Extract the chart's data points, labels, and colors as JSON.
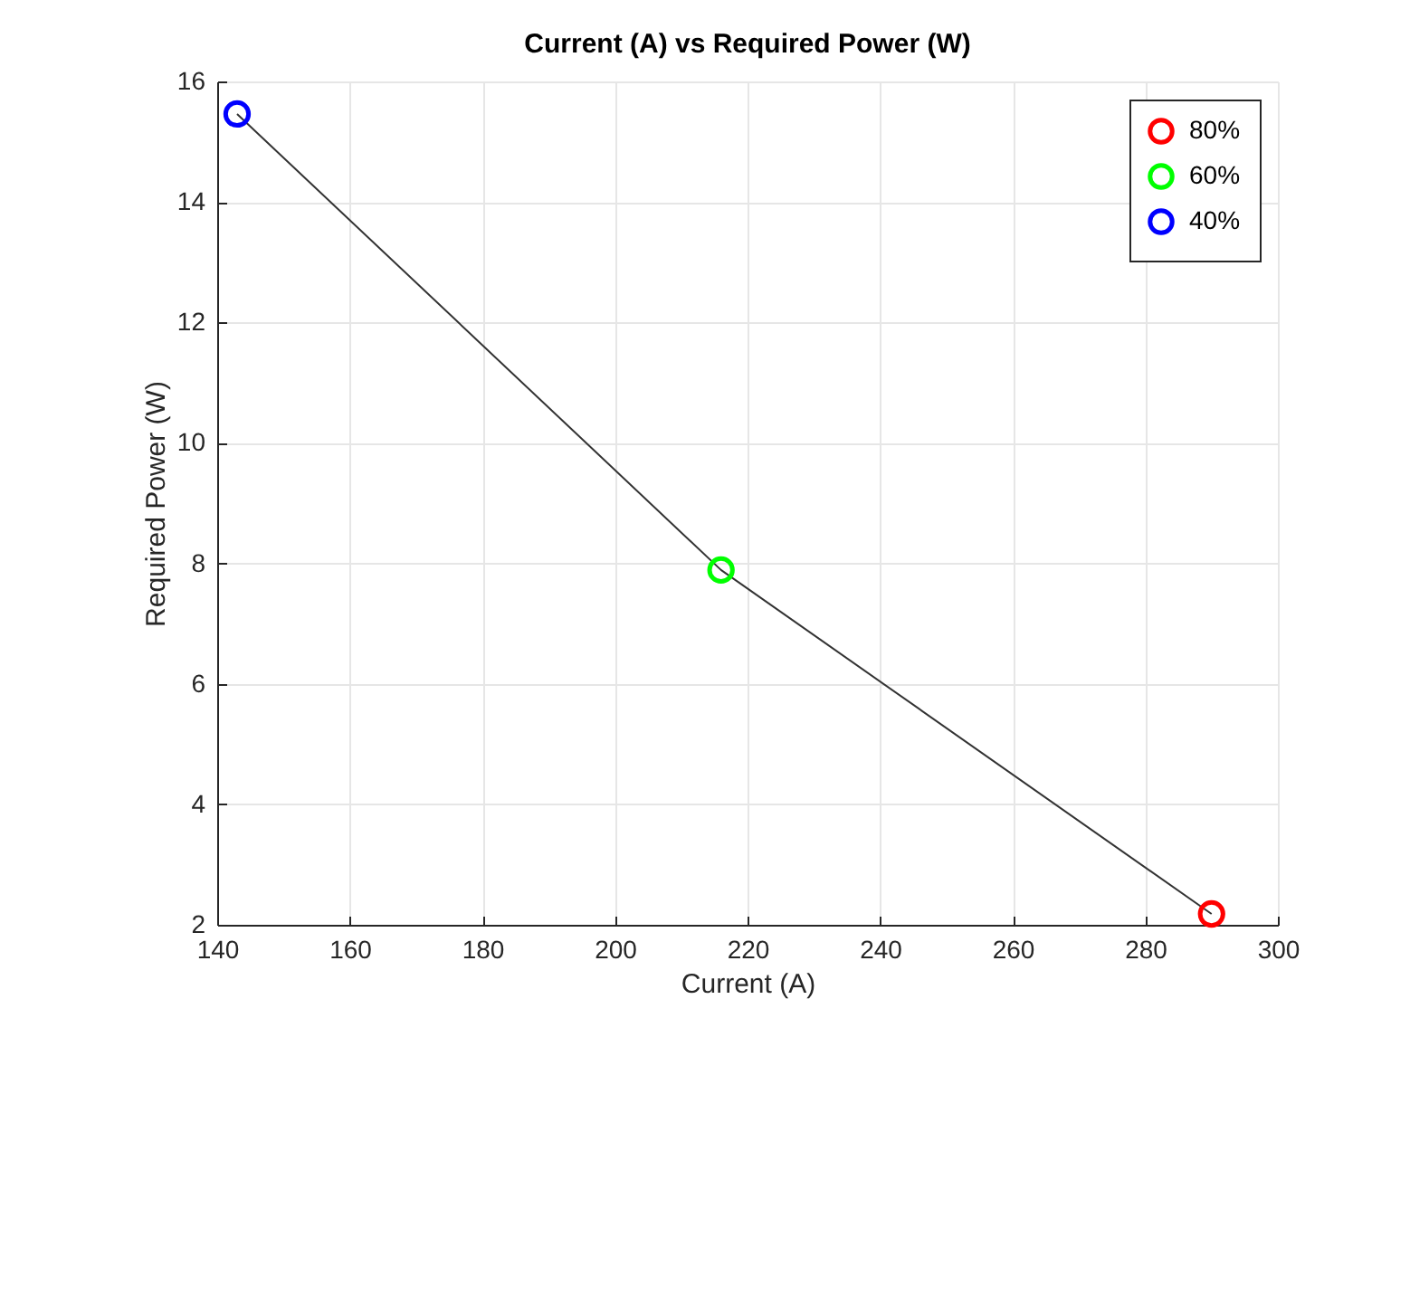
{
  "chart_data": {
    "type": "line",
    "title": "Current (A) vs Required Power (W)",
    "xlabel": "Current (A)",
    "ylabel": "Required Power (W)",
    "xlim": [
      140,
      300
    ],
    "xticks": [
      140,
      160,
      180,
      200,
      220,
      240,
      260,
      280,
      300
    ],
    "ylim": [
      2,
      16
    ],
    "yticks": [
      2,
      4,
      6,
      8,
      10,
      12,
      14,
      16
    ],
    "grid": true,
    "legend": "top right",
    "marker": "circle",
    "series": [
      {
        "marker": "none",
        "color": "#333333",
        "x": [
          290,
          216,
          143
        ],
        "values": [
          2.18,
          7.89,
          15.46
        ]
      },
      {
        "type": "scatter",
        "name": "80%",
        "color": "#ff0000",
        "x": [
          290
        ],
        "values": [
          2.18
        ]
      },
      {
        "type": "scatter",
        "name": "60%",
        "color": "#00ff00",
        "x": [
          216
        ],
        "values": [
          7.89
        ]
      },
      {
        "type": "scatter",
        "name": "40%",
        "color": "#0000ff",
        "x": [
          143
        ],
        "values": [
          15.46
        ]
      }
    ]
  }
}
